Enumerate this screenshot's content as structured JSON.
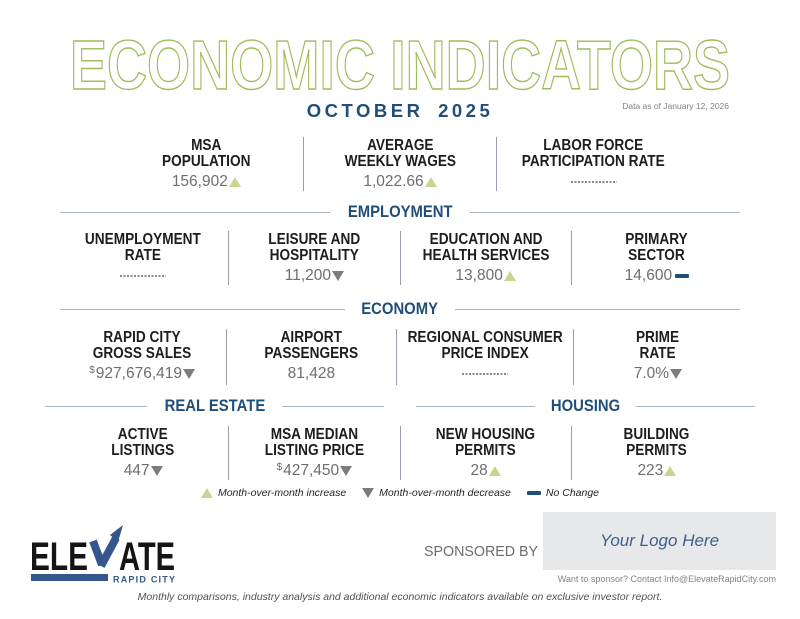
{
  "header": {
    "title": "ECONOMIC INDICATORS",
    "month": "OCTOBER 2025",
    "data_note": "Data as of January 12, 2026"
  },
  "sections": {
    "employment": "EMPLOYMENT",
    "economy": "ECONOMY",
    "real_estate": "REAL ESTATE",
    "housing": "HOUSING"
  },
  "rows": [
    {
      "stats": [
        {
          "label_lines": [
            "MSA",
            "POPULATION"
          ],
          "value": "156,902",
          "prefix": "",
          "trend": "increase"
        },
        {
          "label_lines": [
            "AVERAGE",
            "WEEKLY WAGES"
          ],
          "value": "1,022.66",
          "prefix": "",
          "trend": "increase"
        },
        {
          "label_lines": [
            "LABOR FORCE",
            "PARTICIPATION RATE"
          ],
          "value": null,
          "prefix": "",
          "trend": "no-data"
        }
      ]
    },
    {
      "stats": [
        {
          "label_lines": [
            "UNEMPLOYMENT",
            "RATE"
          ],
          "value": null,
          "prefix": "",
          "trend": "no-data"
        },
        {
          "label_lines": [
            "LEISURE AND",
            "HOSPITALITY"
          ],
          "value": "11,200",
          "prefix": "",
          "trend": "decrease"
        },
        {
          "label_lines": [
            "EDUCATION AND",
            "HEALTH SERVICES"
          ],
          "value": "13,800",
          "prefix": "",
          "trend": "increase"
        },
        {
          "label_lines": [
            "PRIMARY",
            "SECTOR"
          ],
          "value": "14,600",
          "prefix": "",
          "trend": "no-change"
        }
      ]
    },
    {
      "stats": [
        {
          "label_lines": [
            "RAPID CITY",
            "GROSS SALES"
          ],
          "value": "927,676,419",
          "prefix": "$",
          "trend": "decrease"
        },
        {
          "label_lines": [
            "AIRPORT",
            "PASSENGERS"
          ],
          "value": "81,428",
          "prefix": "",
          "trend": "none"
        },
        {
          "label_lines": [
            "REGIONAL CONSUMER",
            "PRICE INDEX"
          ],
          "value": null,
          "prefix": "",
          "trend": "no-data"
        },
        {
          "label_lines": [
            "PRIME",
            "RATE"
          ],
          "value": "7.0%",
          "prefix": "",
          "trend": "decrease"
        }
      ]
    },
    {
      "stats": [
        {
          "label_lines": [
            "ACTIVE",
            "LISTINGS"
          ],
          "value": "447",
          "prefix": "",
          "trend": "decrease"
        },
        {
          "label_lines": [
            "MSA MEDIAN",
            "LISTING PRICE"
          ],
          "value": "427,450",
          "prefix": "$",
          "trend": "decrease"
        },
        {
          "label_lines": [
            "NEW HOUSING",
            "PERMITS"
          ],
          "value": "28",
          "prefix": "",
          "trend": "increase"
        },
        {
          "label_lines": [
            "BUILDING",
            "PERMITS"
          ],
          "value": "223",
          "prefix": "",
          "trend": "increase"
        }
      ]
    }
  ],
  "legend": [
    {
      "icon": "increase",
      "label": "Month-over-month increase"
    },
    {
      "icon": "decrease",
      "label": "Month-over-month decrease"
    },
    {
      "icon": "no-change",
      "label": "No Change"
    }
  ],
  "footer": {
    "logo": {
      "left": "ELE",
      "right": "ATE",
      "sub": "RAPID CITY"
    },
    "sponsored_by": "SPONSORED BY",
    "logo_placeholder": "Your Logo Here",
    "sponsor_contact": "Want to sponsor? Contact Info@ElevateRapidCity.com",
    "note": "Monthly comparisons, industry analysis and additional economic indicators available on exclusive investor report."
  },
  "colors": {
    "title_outline_green": "#9cbd59",
    "navy": "#1f4e79",
    "increase_green": "#c6d68f",
    "decrease_gray": "#7b7c7f",
    "value_gray": "#6d6e71",
    "logo_blue": "#34568c"
  }
}
